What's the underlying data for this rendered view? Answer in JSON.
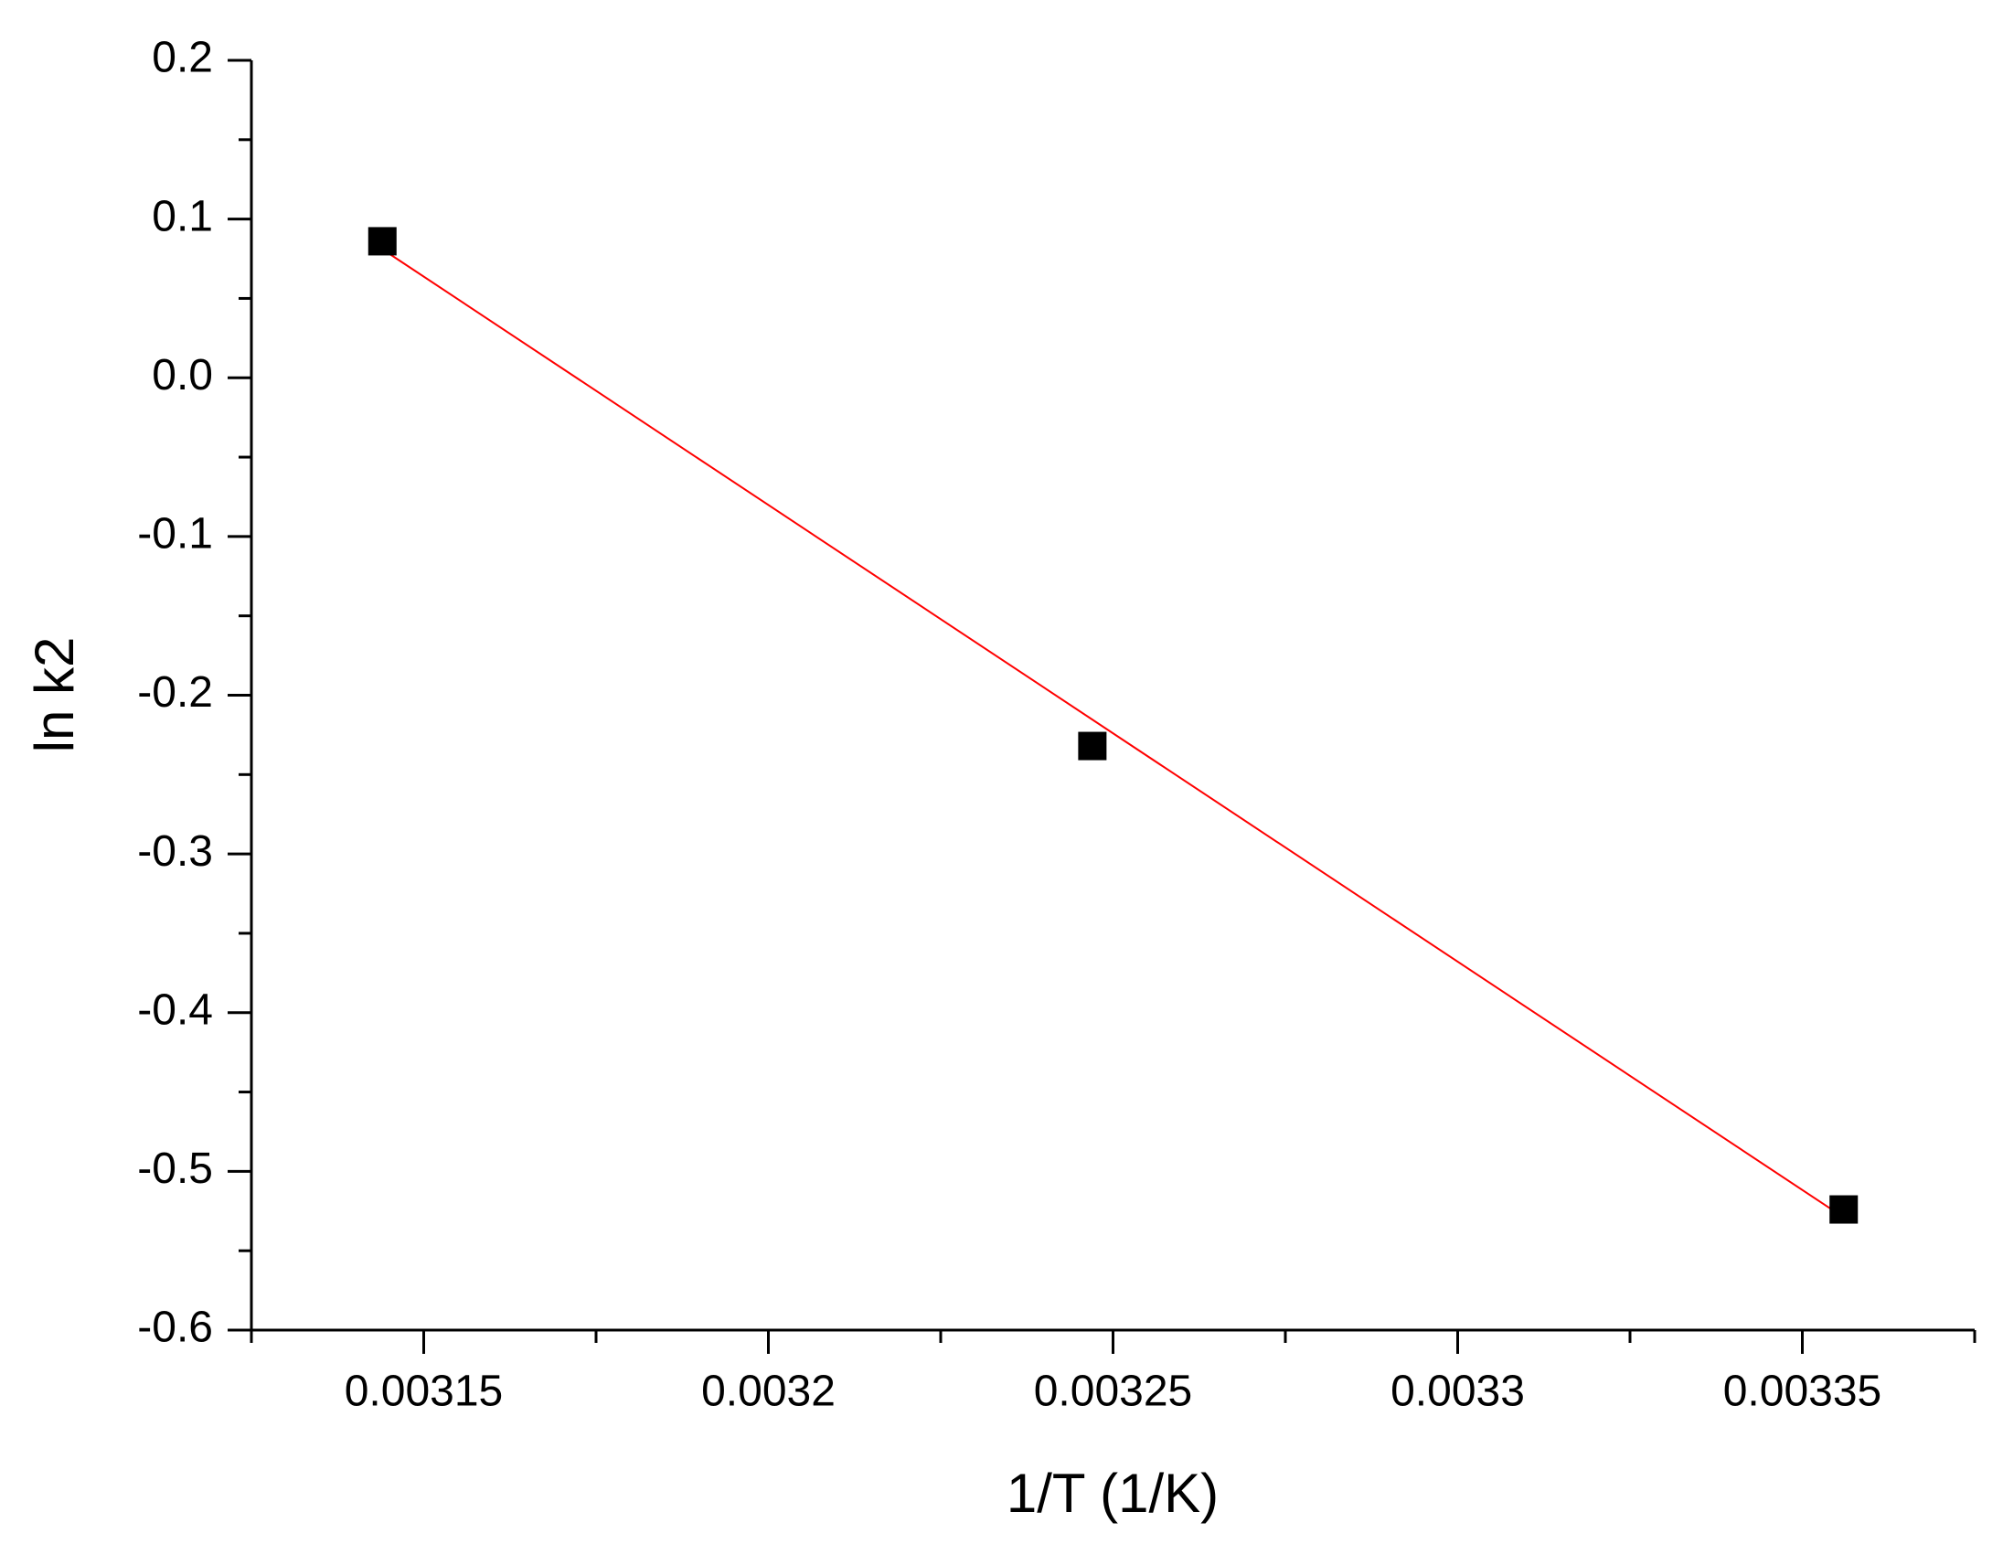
{
  "chart_data": {
    "type": "scatter",
    "x_label": "1/T (1/K)",
    "y_label": "ln k2",
    "x": [
      0.003144,
      0.003247,
      0.003356
    ],
    "series": [
      {
        "color": "#000000",
        "marker": "square",
        "values": [
          0.086,
          -0.232,
          -0.524
        ]
      }
    ],
    "fit_line": {
      "color": "#ff0000",
      "x": [
        0.003144,
        0.003356
      ],
      "values": [
        0.081,
        -0.529
      ]
    },
    "xlim": [
      0.003125,
      0.003375
    ],
    "xticks": [
      0.00315,
      0.0032,
      0.00325,
      0.0033,
      0.00335
    ],
    "ylim": [
      -0.6,
      0.2
    ],
    "yticks": [
      0.2,
      0.1,
      {
        "value": 0,
        "label": "0.0"
      },
      -0.1,
      -0.2,
      -0.3,
      -0.4,
      -0.5,
      -0.6
    ],
    "minor_ticks": true,
    "grid": false
  }
}
